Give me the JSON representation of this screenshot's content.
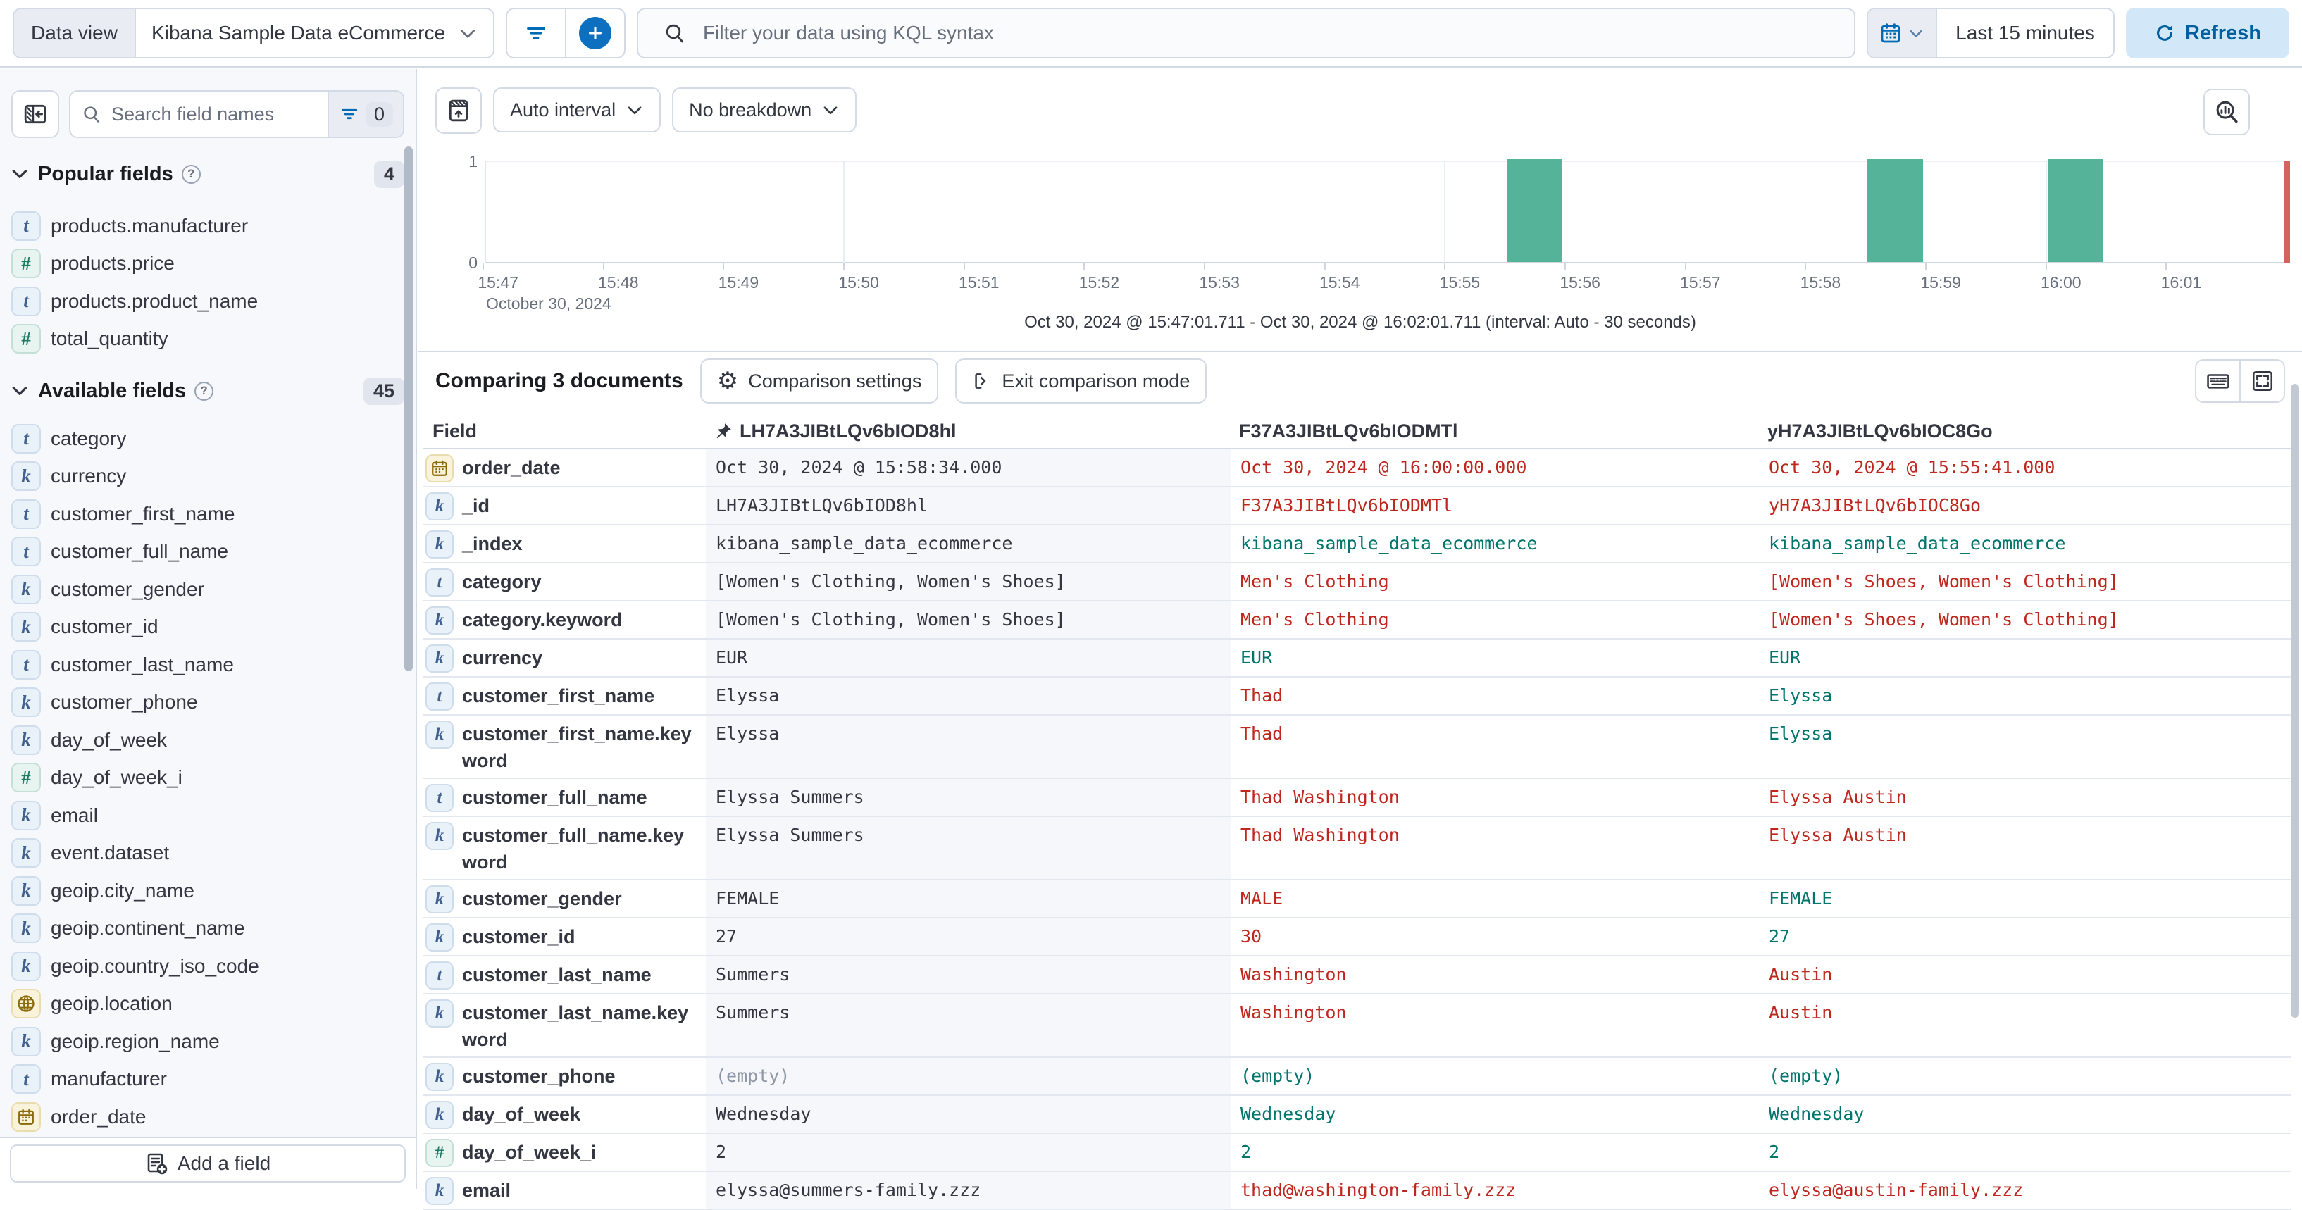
{
  "topbar": {
    "dataview_label": "Data view",
    "dataview_value": "Kibana Sample Data eCommerce",
    "kql_placeholder": "Filter your data using KQL syntax",
    "time_range": "Last 15 minutes",
    "refresh_label": "Refresh"
  },
  "sidebar": {
    "search_placeholder": "Search field names",
    "filter_count": "0",
    "add_field_label": "Add a field",
    "popular": {
      "title": "Popular fields",
      "count": "4",
      "fields": [
        {
          "name": "products.manufacturer",
          "type": "text"
        },
        {
          "name": "products.price",
          "type": "number"
        },
        {
          "name": "products.product_name",
          "type": "text"
        },
        {
          "name": "total_quantity",
          "type": "number"
        }
      ]
    },
    "available": {
      "title": "Available fields",
      "count": "45",
      "fields": [
        {
          "name": "category",
          "type": "text"
        },
        {
          "name": "currency",
          "type": "keyword"
        },
        {
          "name": "customer_first_name",
          "type": "text"
        },
        {
          "name": "customer_full_name",
          "type": "text"
        },
        {
          "name": "customer_gender",
          "type": "keyword"
        },
        {
          "name": "customer_id",
          "type": "keyword"
        },
        {
          "name": "customer_last_name",
          "type": "text"
        },
        {
          "name": "customer_phone",
          "type": "keyword"
        },
        {
          "name": "day_of_week",
          "type": "keyword"
        },
        {
          "name": "day_of_week_i",
          "type": "number"
        },
        {
          "name": "email",
          "type": "keyword"
        },
        {
          "name": "event.dataset",
          "type": "keyword"
        },
        {
          "name": "geoip.city_name",
          "type": "keyword"
        },
        {
          "name": "geoip.continent_name",
          "type": "keyword"
        },
        {
          "name": "geoip.country_iso_code",
          "type": "keyword"
        },
        {
          "name": "geoip.location",
          "type": "geo_point"
        },
        {
          "name": "geoip.region_name",
          "type": "keyword"
        },
        {
          "name": "manufacturer",
          "type": "text"
        },
        {
          "name": "order_date",
          "type": "date"
        }
      ]
    }
  },
  "chart": {
    "interval_label": "Auto interval",
    "breakdown_label": "No breakdown",
    "context_label": "October 30, 2024",
    "subtitle": "Oct 30, 2024 @ 15:47:01.711 - Oct 30, 2024 @ 16:02:01.711 (interval: Auto - 30 seconds)",
    "y_ticks": [
      "1",
      "0"
    ],
    "chart_data": {
      "type": "bar",
      "title": "Document count histogram",
      "x_range": [
        "15:47:01.711",
        "16:02:01.711"
      ],
      "x_tick_labels": [
        "15:47",
        "15:48",
        "15:49",
        "15:50",
        "15:51",
        "15:52",
        "15:53",
        "15:54",
        "15:55",
        "15:56",
        "15:57",
        "15:58",
        "15:59",
        "16:00",
        "16:01"
      ],
      "gridline_ticks": [
        "15:50",
        "15:55",
        "16:00"
      ],
      "ylim": [
        0,
        1
      ],
      "interval_seconds": 30,
      "bar_color": "#54b399",
      "current_time_marker_color": "#d4625e",
      "buckets": [
        {
          "time": "15:55:30",
          "count": 1
        },
        {
          "time": "15:58:30",
          "count": 1
        },
        {
          "time": "16:00:00",
          "count": 1
        }
      ]
    }
  },
  "comparison": {
    "title": "Comparing 3 documents",
    "settings_label": "Comparison settings",
    "exit_label": "Exit comparison mode"
  },
  "table": {
    "field_header": "Field",
    "doc_headers": [
      "LH7A3JIBtLQv6bIOD8hl",
      "F37A3JIBtLQv6bIODMTl",
      "yH7A3JIBtLQv6bIOC8Go"
    ],
    "diff_colors": {
      "base": "#343741",
      "different": "#bd271e",
      "matching": "#00756b"
    },
    "rows": [
      {
        "field": "order_date",
        "type": "date",
        "cells": [
          {
            "text": "Oct 30, 2024 @ 15:58:34.000",
            "state": "base"
          },
          {
            "text": "Oct 30, 2024 @ 16:00:00.000",
            "state": "diff"
          },
          {
            "text": "Oct 30, 2024 @ 15:55:41.000",
            "state": "diff"
          }
        ]
      },
      {
        "field": "_id",
        "type": "keyword",
        "cells": [
          {
            "text": "LH7A3JIBtLQv6bIOD8hl",
            "state": "base"
          },
          {
            "text": "F37A3JIBtLQv6bIODMTl",
            "state": "diff"
          },
          {
            "text": "yH7A3JIBtLQv6bIOC8Go",
            "state": "diff"
          }
        ]
      },
      {
        "field": "_index",
        "type": "keyword",
        "cells": [
          {
            "text": "kibana_sample_data_ecommerce",
            "state": "base"
          },
          {
            "text": "kibana_sample_data_ecommerce",
            "state": "same"
          },
          {
            "text": "kibana_sample_data_ecommerce",
            "state": "same"
          }
        ]
      },
      {
        "field": "category",
        "type": "text",
        "cells": [
          {
            "text": "[Women's Clothing, Women's Shoes]",
            "state": "base"
          },
          {
            "text": "Men's Clothing",
            "state": "diff"
          },
          {
            "text": "[Women's Shoes, Women's Clothing]",
            "state": "diff"
          }
        ]
      },
      {
        "field": "category.keyword",
        "type": "keyword",
        "cells": [
          {
            "text": "[Women's Clothing, Women's Shoes]",
            "state": "base"
          },
          {
            "text": "Men's Clothing",
            "state": "diff"
          },
          {
            "text": "[Women's Shoes, Women's Clothing]",
            "state": "diff"
          }
        ]
      },
      {
        "field": "currency",
        "type": "keyword",
        "cells": [
          {
            "text": "EUR",
            "state": "base"
          },
          {
            "text": "EUR",
            "state": "same"
          },
          {
            "text": "EUR",
            "state": "same"
          }
        ]
      },
      {
        "field": "customer_first_name",
        "type": "text",
        "cells": [
          {
            "text": "Elyssa",
            "state": "base"
          },
          {
            "text": "Thad",
            "state": "diff"
          },
          {
            "text": "Elyssa",
            "state": "same"
          }
        ]
      },
      {
        "field": "customer_first_name.keyword",
        "type": "keyword",
        "tall": true,
        "cells": [
          {
            "text": "Elyssa",
            "state": "base"
          },
          {
            "text": "Thad",
            "state": "diff"
          },
          {
            "text": "Elyssa",
            "state": "same"
          }
        ]
      },
      {
        "field": "customer_full_name",
        "type": "text",
        "cells": [
          {
            "text": "Elyssa Summers",
            "state": "base"
          },
          {
            "text": "Thad Washington",
            "state": "diff"
          },
          {
            "text": "Elyssa Austin",
            "state": "diff"
          }
        ]
      },
      {
        "field": "customer_full_name.keyword",
        "type": "keyword",
        "tall": true,
        "cells": [
          {
            "text": "Elyssa Summers",
            "state": "base"
          },
          {
            "text": "Thad Washington",
            "state": "diff"
          },
          {
            "text": "Elyssa Austin",
            "state": "diff"
          }
        ]
      },
      {
        "field": "customer_gender",
        "type": "keyword",
        "cells": [
          {
            "text": "FEMALE",
            "state": "base"
          },
          {
            "text": "MALE",
            "state": "diff"
          },
          {
            "text": "FEMALE",
            "state": "same"
          }
        ]
      },
      {
        "field": "customer_id",
        "type": "keyword",
        "cells": [
          {
            "text": "27",
            "state": "base"
          },
          {
            "text": "30",
            "state": "diff"
          },
          {
            "text": "27",
            "state": "same"
          }
        ]
      },
      {
        "field": "customer_last_name",
        "type": "text",
        "cells": [
          {
            "text": "Summers",
            "state": "base"
          },
          {
            "text": "Washington",
            "state": "diff"
          },
          {
            "text": "Austin",
            "state": "diff"
          }
        ]
      },
      {
        "field": "customer_last_name.keyword",
        "type": "keyword",
        "tall": true,
        "cells": [
          {
            "text": "Summers",
            "state": "base"
          },
          {
            "text": "Washington",
            "state": "diff"
          },
          {
            "text": "Austin",
            "state": "diff"
          }
        ]
      },
      {
        "field": "customer_phone",
        "type": "keyword",
        "cells": [
          {
            "text": "(empty)",
            "state": "muted"
          },
          {
            "text": "(empty)",
            "state": "same"
          },
          {
            "text": "(empty)",
            "state": "same"
          }
        ]
      },
      {
        "field": "day_of_week",
        "type": "keyword",
        "cells": [
          {
            "text": "Wednesday",
            "state": "base"
          },
          {
            "text": "Wednesday",
            "state": "same"
          },
          {
            "text": "Wednesday",
            "state": "same"
          }
        ]
      },
      {
        "field": "day_of_week_i",
        "type": "number",
        "cells": [
          {
            "text": "2",
            "state": "base"
          },
          {
            "text": "2",
            "state": "same"
          },
          {
            "text": "2",
            "state": "same"
          }
        ]
      },
      {
        "field": "email",
        "type": "keyword",
        "cells": [
          {
            "text": "elyssa@summers-family.zzz",
            "state": "base"
          },
          {
            "text": "thad@washington-family.zzz",
            "state": "diff"
          },
          {
            "text": "elyssa@austin-family.zzz",
            "state": "diff"
          }
        ]
      }
    ]
  }
}
